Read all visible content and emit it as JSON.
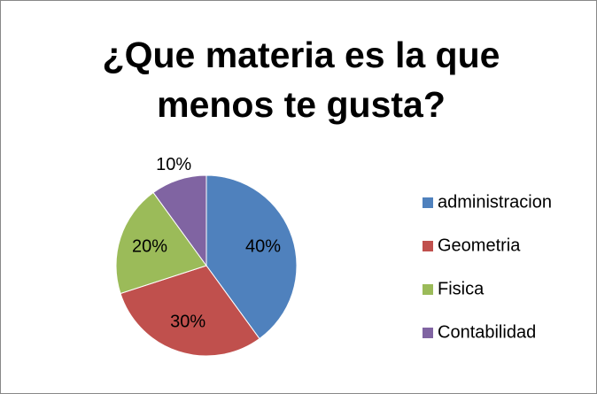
{
  "chart_data": {
    "type": "pie",
    "title": "¿Que materia es la que menos te gusta?",
    "categories": [
      "administracion",
      "Geometria",
      "Fisica",
      "Contabilidad"
    ],
    "values": [
      40,
      30,
      20,
      10
    ],
    "value_labels": [
      "40%",
      "30%",
      "20%",
      "10%"
    ],
    "colors": [
      "#4f81bd",
      "#c0504d",
      "#9bbb59",
      "#8064a2"
    ],
    "legend": "right"
  }
}
